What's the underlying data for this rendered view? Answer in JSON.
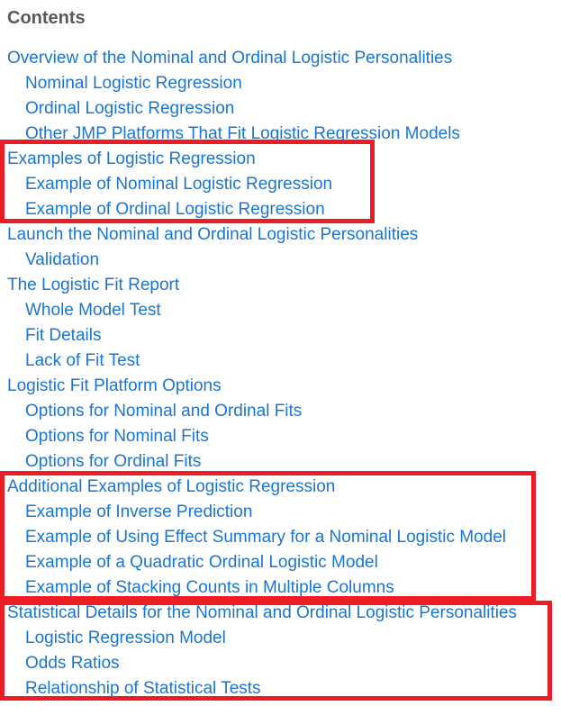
{
  "page": {
    "title": "Contents"
  },
  "toc": {
    "items": [
      {
        "label": "Overview of the Nominal and Ordinal Logistic Personalities",
        "level": 1
      },
      {
        "label": "Nominal Logistic Regression",
        "level": 2
      },
      {
        "label": "Ordinal Logistic Regression",
        "level": 2
      },
      {
        "label": "Other JMP Platforms That Fit Logistic Regression Models",
        "level": 2
      },
      {
        "label": "Examples of Logistic Regression",
        "level": 1
      },
      {
        "label": "Example of Nominal Logistic Regression",
        "level": 2
      },
      {
        "label": "Example of Ordinal Logistic Regression",
        "level": 2
      },
      {
        "label": "Launch the Nominal and Ordinal Logistic Personalities",
        "level": 1
      },
      {
        "label": "Validation",
        "level": 2
      },
      {
        "label": "The Logistic Fit Report",
        "level": 1
      },
      {
        "label": "Whole Model Test",
        "level": 2
      },
      {
        "label": "Fit Details",
        "level": 2
      },
      {
        "label": "Lack of Fit Test",
        "level": 2
      },
      {
        "label": "Logistic Fit Platform Options",
        "level": 1
      },
      {
        "label": "Options for Nominal and Ordinal Fits",
        "level": 2
      },
      {
        "label": "Options for Nominal Fits",
        "level": 2
      },
      {
        "label": "Options for Ordinal Fits",
        "level": 2
      },
      {
        "label": "Additional Examples of Logistic Regression",
        "level": 1
      },
      {
        "label": "Example of Inverse Prediction",
        "level": 2
      },
      {
        "label": "Example of Using Effect Summary for a Nominal Logistic Model",
        "level": 2
      },
      {
        "label": "Example of a Quadratic Ordinal Logistic Model",
        "level": 2
      },
      {
        "label": "Example of Stacking Counts in Multiple Columns",
        "level": 2
      },
      {
        "label": "Statistical Details for the Nominal and Ordinal Logistic Personalities",
        "level": 1
      },
      {
        "label": "Logistic Regression Model",
        "level": 2
      },
      {
        "label": "Odds Ratios",
        "level": 2
      },
      {
        "label": "Relationship of Statistical Tests",
        "level": 2
      }
    ]
  },
  "annotations": {
    "boxes": [
      {
        "highlights": "Examples of Logistic Regression section"
      },
      {
        "highlights": "Additional Examples of Logistic Regression section"
      },
      {
        "highlights": "Statistical Details for the Nominal and Ordinal Logistic Personalities section"
      }
    ]
  },
  "colors": {
    "link": "#1B75D0",
    "heading": "#58595B",
    "highlight": "#EC1C24",
    "page-bg": "#FFFFFF"
  }
}
